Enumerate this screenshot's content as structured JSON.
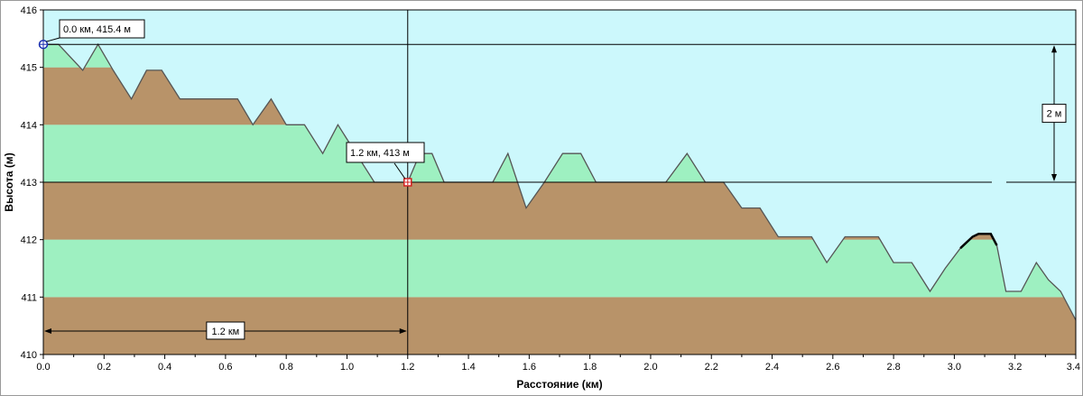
{
  "chart_data": {
    "type": "area",
    "xlabel": "Расстояние  (км)",
    "ylabel": "Высота (м)",
    "xlim": [
      0.0,
      3.4
    ],
    "ylim": [
      410,
      416
    ],
    "x_ticks": [
      0.0,
      0.2,
      0.4,
      0.6,
      0.8,
      1.0,
      1.2,
      1.4,
      1.6,
      1.8,
      2.0,
      2.2,
      2.4,
      2.6,
      2.8,
      3.0,
      3.2,
      3.4
    ],
    "x_tick_labels": [
      "0.0",
      "0.2",
      "0.4",
      "0.6",
      "0.8",
      "1.0",
      "1.2",
      "1.4",
      "1.6",
      "1.8",
      "2.0",
      "2.2",
      "2.4",
      "2.6",
      "2.8",
      "3.0",
      "3.2",
      "3.4"
    ],
    "y_ticks": [
      410,
      411,
      412,
      413,
      414,
      415,
      416
    ],
    "y_tick_labels": [
      "410",
      "411",
      "412",
      "413",
      "414",
      "415",
      "416"
    ],
    "grid": false,
    "colors": {
      "sky": "#ccf8fc",
      "band_green": "#9ef0c1",
      "band_brown": "#b89369",
      "profile_line": "#555555",
      "frame": "#000000",
      "point_start": "#1a2fb0",
      "point_marker": "#d22020"
    },
    "bands": [
      {
        "from": 410,
        "to": 411,
        "fill": "brown"
      },
      {
        "from": 411,
        "to": 412,
        "fill": "green"
      },
      {
        "from": 412,
        "to": 413,
        "fill": "brown"
      },
      {
        "from": 413,
        "to": 414,
        "fill": "green"
      },
      {
        "from": 414,
        "to": 415,
        "fill": "brown"
      },
      {
        "from": 415,
        "to": 416,
        "fill": "green"
      }
    ],
    "series": [
      {
        "x": [
          0.0,
          0.05,
          0.13,
          0.18,
          0.23,
          0.29,
          0.34,
          0.39,
          0.45,
          0.52,
          0.58,
          0.64,
          0.69,
          0.75,
          0.8,
          0.86,
          0.92,
          0.97,
          1.03,
          1.09,
          1.15,
          1.2,
          1.24,
          1.28,
          1.32,
          1.36,
          1.42,
          1.48,
          1.53,
          1.59,
          1.65,
          1.71,
          1.77,
          1.82,
          1.88,
          1.93,
          1.99,
          2.05,
          2.12,
          2.18,
          2.24,
          2.3,
          2.36,
          2.42,
          2.47,
          2.53,
          2.58,
          2.64,
          2.69,
          2.75,
          2.8,
          2.86,
          2.92,
          2.97,
          3.02,
          3.06,
          3.08,
          3.1,
          3.12,
          3.14,
          3.17,
          3.22,
          3.27,
          3.31,
          3.35,
          3.4
        ],
        "y": [
          415.4,
          415.4,
          414.95,
          415.4,
          414.95,
          414.45,
          414.95,
          414.95,
          414.45,
          414.45,
          414.45,
          414.45,
          414.0,
          414.45,
          414.0,
          414.0,
          413.5,
          414.0,
          413.5,
          413.0,
          413.0,
          413.0,
          413.5,
          413.5,
          413.0,
          413.0,
          413.0,
          413.0,
          413.5,
          412.55,
          413.0,
          413.5,
          413.5,
          413.0,
          413.0,
          413.0,
          413.0,
          413.0,
          413.5,
          413.0,
          413.0,
          412.55,
          412.55,
          412.05,
          412.05,
          412.05,
          411.6,
          412.05,
          412.05,
          412.05,
          411.6,
          411.6,
          411.1,
          411.5,
          411.85,
          412.05,
          412.1,
          412.1,
          412.1,
          411.9,
          411.1,
          411.1,
          411.6,
          411.3,
          411.1,
          410.6
        ]
      }
    ],
    "annotations": {
      "start_point": {
        "x": 0.0,
        "y": 415.4,
        "label": "0.0 км, 415.4 м"
      },
      "marker_point": {
        "x": 1.2,
        "y": 413.0,
        "label": "1.2 км, 413 м"
      },
      "distance_label": "1.2 км",
      "height_diff_label": "2 м"
    }
  }
}
